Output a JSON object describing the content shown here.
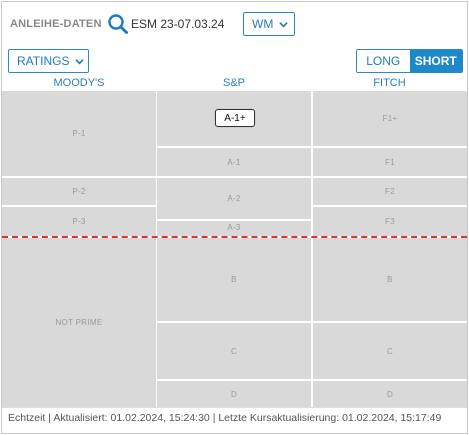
{
  "header": {
    "label": "ANLEIHE-DATEN",
    "search_value": "ESM 23-07.03.24",
    "currency_select": "WM",
    "rating_select": "RATINGS"
  },
  "term_toggle": {
    "long": "LONG",
    "short": "SHORT",
    "active": "SHORT"
  },
  "columns": {
    "moodys": "MOODY'S",
    "sp": "S&P",
    "fitch": "FITCH"
  },
  "moodys": [
    "P-1",
    "P-2",
    "P-3",
    "NOT PRIME"
  ],
  "sp": [
    "A-1+",
    "A-1",
    "A-2",
    "A-3",
    "B",
    "C",
    "D"
  ],
  "fitch": [
    "F1+",
    "F1",
    "F2",
    "F3",
    "B",
    "C",
    "D"
  ],
  "current_rating": "A-1+",
  "colors": {
    "accent": "#1f88c9",
    "cell": "#d9d9d9",
    "threshold_line": "#e0342a"
  },
  "footer": "Echtzeit | Aktualisiert: 01.02.2024, 15:24:30 | Letzte Kursaktualisierung: 01.02.2024, 15:17:49"
}
